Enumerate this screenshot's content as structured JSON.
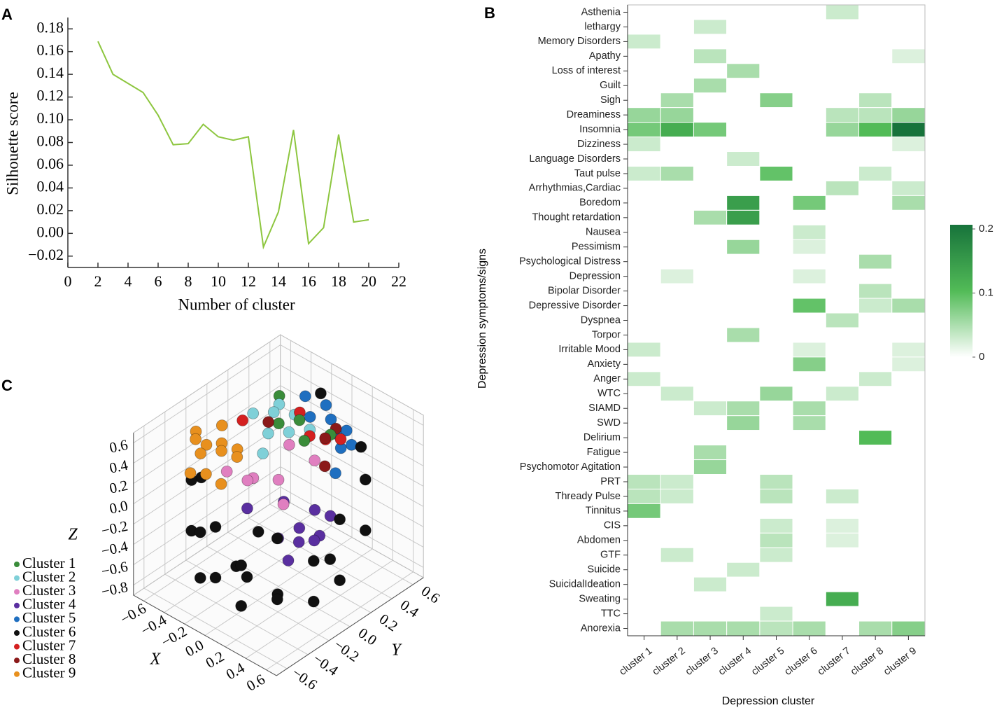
{
  "chart_data": [
    {
      "label": "A",
      "type": "line",
      "x_label": "Number of cluster",
      "y_label": "Silhouette score",
      "x": [
        2,
        3,
        4,
        5,
        6,
        7,
        8,
        9,
        10,
        11,
        12,
        13,
        14,
        15,
        16,
        17,
        18,
        19,
        20
      ],
      "values": [
        0.169,
        0.14,
        0.132,
        0.124,
        0.104,
        0.078,
        0.079,
        0.096,
        0.085,
        0.082,
        0.085,
        -0.012,
        0.019,
        0.091,
        -0.009,
        0.005,
        0.087,
        0.01,
        0.012
      ],
      "color": "#8dc63f",
      "xlim": [
        0,
        22
      ],
      "xticks": [
        0,
        2,
        4,
        6,
        8,
        10,
        12,
        14,
        16,
        18,
        20,
        22
      ],
      "ylim": [
        -0.03,
        0.19
      ],
      "yticks": [
        {
          "value": -0.02,
          "label": "−0.02"
        },
        {
          "value": 0,
          "label": "0.00"
        },
        0.02,
        0.04,
        0.06,
        0.08,
        {
          "value": 0.1,
          "label": "0.10"
        },
        0.12,
        0.14,
        0.16,
        0.18
      ]
    },
    {
      "label": "B",
      "type": "heatmap",
      "x_label": "Depression cluster",
      "y_label": "Depression symptoms/signs",
      "categories": [
        "cluster 1",
        "cluster 2",
        "cluster 3",
        "cluster 4",
        "cluster 5",
        "cluster 6",
        "cluster 7",
        "cluster 8",
        "cluster 9"
      ],
      "rows": [
        "Asthenia",
        "lethargy",
        "Memory Disorders",
        "Apathy",
        "Loss of interest",
        "Guilt",
        "Sigh",
        "Dreaminess",
        "Insomnia",
        "Dizziness",
        "Language Disorders",
        "Taut pulse",
        "Arrhythmias,Cardiac",
        "Boredom",
        "Thought retardation",
        "Nausea",
        "Pessimism",
        "Psychological Distress",
        "Depression",
        "Bipolar Disorder",
        "Depressive Disorder",
        "Dyspnea",
        "Torpor",
        "Irritable Mood",
        "Anxiety",
        "Anger",
        "WTC",
        "SIAMD",
        "SWD",
        "Delirium",
        "Fatigue",
        "Psychomotor Agitation",
        "PRT",
        "Thready Pulse",
        "Tinnitus",
        "CIS",
        "Abdomen",
        "GTF",
        "Suicide",
        "SuicidalIdeation",
        "Sweating",
        "TTC",
        "Anorexia"
      ],
      "values": [
        [
          0,
          0,
          0,
          0,
          0,
          0,
          0.03,
          0,
          0
        ],
        [
          0,
          0,
          0.03,
          0,
          0,
          0,
          0,
          0,
          0
        ],
        [
          0.03,
          0,
          0,
          0,
          0,
          0,
          0,
          0,
          0
        ],
        [
          0,
          0,
          0.04,
          0,
          0,
          0,
          0,
          0,
          0.02
        ],
        [
          0,
          0,
          0,
          0.05,
          0,
          0,
          0,
          0,
          0
        ],
        [
          0,
          0,
          0.05,
          0,
          0,
          0,
          0,
          0,
          0
        ],
        [
          0,
          0.05,
          0,
          0,
          0.07,
          0,
          0,
          0.04,
          0
        ],
        [
          0.06,
          0.06,
          0,
          0,
          0,
          0,
          0.04,
          0.04,
          0.06
        ],
        [
          0.08,
          0.12,
          0.08,
          0,
          0,
          0,
          0.06,
          0.1,
          0.2
        ],
        [
          0.03,
          0,
          0,
          0,
          0,
          0,
          0,
          0,
          0.02
        ],
        [
          0,
          0,
          0,
          0.03,
          0,
          0,
          0,
          0,
          0
        ],
        [
          0.03,
          0.05,
          0,
          0,
          0.09,
          0,
          0,
          0.03,
          0
        ],
        [
          0,
          0,
          0,
          0,
          0,
          0,
          0.04,
          0,
          0.03
        ],
        [
          0,
          0,
          0,
          0.14,
          0,
          0.08,
          0,
          0,
          0.05
        ],
        [
          0,
          0,
          0.05,
          0.14,
          0,
          0,
          0,
          0,
          0
        ],
        [
          0,
          0,
          0,
          0,
          0,
          0.03,
          0,
          0,
          0
        ],
        [
          0,
          0,
          0,
          0.06,
          0,
          0.02,
          0,
          0,
          0
        ],
        [
          0,
          0,
          0,
          0,
          0,
          0,
          0,
          0.05,
          0
        ],
        [
          0,
          0.02,
          0,
          0,
          0,
          0.02,
          0,
          0,
          0
        ],
        [
          0,
          0,
          0,
          0,
          0,
          0,
          0,
          0.04,
          0
        ],
        [
          0,
          0,
          0,
          0,
          0,
          0.09,
          0,
          0.03,
          0.05
        ],
        [
          0,
          0,
          0,
          0,
          0,
          0,
          0.04,
          0,
          0
        ],
        [
          0,
          0,
          0,
          0.05,
          0,
          0,
          0,
          0,
          0
        ],
        [
          0.03,
          0,
          0,
          0,
          0,
          0.02,
          0,
          0,
          0.02
        ],
        [
          0,
          0,
          0,
          0,
          0,
          0.07,
          0,
          0,
          0.02
        ],
        [
          0.03,
          0,
          0,
          0,
          0,
          0,
          0,
          0.03,
          0
        ],
        [
          0,
          0.03,
          0,
          0,
          0.06,
          0,
          0.03,
          0,
          0
        ],
        [
          0,
          0,
          0.03,
          0.05,
          0,
          0.05,
          0,
          0,
          0
        ],
        [
          0,
          0,
          0,
          0.06,
          0,
          0.05,
          0,
          0,
          0
        ],
        [
          0,
          0,
          0,
          0,
          0,
          0,
          0,
          0.1,
          0
        ],
        [
          0,
          0,
          0.05,
          0,
          0,
          0,
          0,
          0,
          0
        ],
        [
          0,
          0,
          0.06,
          0,
          0,
          0,
          0,
          0,
          0
        ],
        [
          0.04,
          0.03,
          0,
          0,
          0.04,
          0,
          0,
          0,
          0
        ],
        [
          0.04,
          0.03,
          0,
          0,
          0.04,
          0,
          0.03,
          0,
          0
        ],
        [
          0.08,
          0,
          0,
          0,
          0,
          0,
          0,
          0,
          0
        ],
        [
          0,
          0,
          0,
          0,
          0.03,
          0,
          0.02,
          0,
          0
        ],
        [
          0,
          0,
          0,
          0,
          0.04,
          0,
          0.02,
          0,
          0
        ],
        [
          0,
          0.03,
          0,
          0,
          0.03,
          0,
          0,
          0,
          0
        ],
        [
          0,
          0,
          0,
          0.03,
          0,
          0,
          0,
          0,
          0
        ],
        [
          0,
          0,
          0.03,
          0,
          0,
          0,
          0,
          0,
          0
        ],
        [
          0,
          0,
          0,
          0,
          0,
          0,
          0.12,
          0,
          0
        ],
        [
          0,
          0,
          0,
          0,
          0.03,
          0,
          0,
          0,
          0
        ],
        [
          0,
          0.05,
          0.05,
          0.05,
          0.04,
          0.05,
          0,
          0.05,
          0.07
        ]
      ],
      "colorscale": [
        "#ffffff",
        "#52bb57",
        "#17733b"
      ],
      "clim": [
        0,
        0.2
      ],
      "cticks": [
        0,
        0.1,
        0.2
      ]
    },
    {
      "label": "C",
      "type": "scatter3d",
      "x_label": "X",
      "y_label": "Y",
      "z_label": "Z",
      "xlim": [
        -0.7,
        0.7
      ],
      "ylim": [
        -0.7,
        0.7
      ],
      "zlim": [
        -0.9,
        0.7
      ],
      "xticks": [
        {
          "value": -0.6,
          "label": "−0.6"
        },
        {
          "value": -0.4,
          "label": "−0.4"
        },
        {
          "value": -0.2,
          "label": "−0.2"
        },
        {
          "value": 0,
          "label": "0.0"
        },
        0.2,
        0.4,
        0.6
      ],
      "yticks": [
        {
          "value": -0.6,
          "label": "−0.6"
        },
        {
          "value": -0.4,
          "label": "−0.4"
        },
        {
          "value": -0.2,
          "label": "−0.2"
        },
        {
          "value": 0,
          "label": "0.0"
        },
        0.2,
        0.4,
        0.6
      ],
      "zticks": [
        {
          "value": -0.8,
          "label": "−0.8"
        },
        {
          "value": -0.6,
          "label": "−0.6"
        },
        {
          "value": -0.4,
          "label": "−0.4"
        },
        {
          "value": -0.2,
          "label": "−0.2"
        },
        {
          "value": 0,
          "label": "0.0"
        },
        0.2,
        0.4,
        0.6
      ],
      "series": [
        {
          "name": "Cluster 1",
          "color": "#3a8c3a",
          "x": [
            -0.3,
            0,
            0.2,
            -0.1,
            0.15
          ],
          "y": [
            0.3,
            0.2,
            0.3,
            0.1,
            0.1
          ],
          "z": [
            0.6,
            0.6,
            0.5,
            0.58,
            0.55
          ]
        },
        {
          "name": "Cluster 2",
          "color": "#7fd0d8",
          "x": [
            -0.3,
            -0.2,
            -0.1,
            0,
            -0.25,
            -0.15,
            0.05,
            -0.05
          ],
          "y": [
            0.05,
            0.15,
            0,
            0.1,
            0.25,
            0.3,
            0.25,
            -0.1
          ],
          "z": [
            0.6,
            0.6,
            0.55,
            0.55,
            0.58,
            0.5,
            0.5,
            0.45
          ]
        },
        {
          "name": "Cluster 3",
          "color": "#e07fc0",
          "x": [
            -0.3,
            -0.2,
            0,
            0.1,
            -0.35,
            -0.1,
            0.2
          ],
          "y": [
            -0.2,
            -0.1,
            0,
            -0.05,
            0.1,
            0.2,
            0.15
          ],
          "z": [
            0.2,
            0.1,
            0.15,
            0,
            -0.1,
            0.3,
            0.35
          ]
        },
        {
          "name": "Cluster 4",
          "color": "#5a2fa0",
          "x": [
            0.1,
            0.2,
            0.3,
            0.15,
            0.25,
            0,
            0.35,
            -0.1,
            0.2,
            0.05
          ],
          "y": [
            -0.1,
            0,
            0.1,
            0.2,
            -0.15,
            0.05,
            0,
            -0.2,
            0.3,
            0.15
          ],
          "z": [
            -0.3,
            -0.35,
            -0.3,
            -0.2,
            -0.4,
            -0.1,
            -0.25,
            -0.05,
            -0.3,
            -0.4
          ]
        },
        {
          "name": "Cluster 5",
          "color": "#1f6fc0",
          "x": [
            -0.2,
            -0.1,
            0,
            0.1,
            0.2,
            0.05,
            0.15,
            -0.05,
            0.25
          ],
          "y": [
            0.45,
            0.55,
            0.5,
            0.45,
            0.4,
            0.6,
            0.55,
            0.35,
            0.3
          ],
          "z": [
            0.55,
            0.45,
            0.4,
            0.35,
            0.3,
            0.25,
            0.2,
            0.5,
            0.15
          ]
        },
        {
          "name": "Cluster 6",
          "color": "#111111",
          "x": [
            0.6,
            0.42,
            0,
            -0.42,
            0.42,
            0.55,
            0.2,
            -0.2,
            -0.55,
            0.6,
            0.42,
            0,
            -0.42,
            0.42,
            0.55,
            0.2,
            -0.2,
            0.3,
            0,
            -0.3,
            0.3,
            0.1,
            -0.1,
            0.5
          ],
          "y": [
            0,
            -0.42,
            -0.6,
            -0.42,
            0.42,
            -0.2,
            -0.55,
            -0.55,
            -0.2,
            0,
            -0.42,
            -0.6,
            -0.42,
            0.42,
            -0.2,
            -0.55,
            -0.55,
            -0.3,
            -0.3,
            0.1,
            0.2,
            -0.5,
            0.5,
            0.3
          ],
          "z": [
            0.1,
            0.1,
            0.1,
            0.2,
            0.1,
            -0.2,
            -0.2,
            -0.1,
            0,
            -0.5,
            -0.5,
            -0.4,
            -0.3,
            -0.4,
            -0.6,
            -0.6,
            -0.55,
            -0.6,
            -0.6,
            -0.6,
            -0.6,
            -0.3,
            0.6,
            0.55
          ]
        },
        {
          "name": "Cluster 7",
          "color": "#d42020",
          "x": [
            -0.1,
            0.1,
            0.25,
            -0.3,
            0.05
          ],
          "y": [
            0.3,
            0.2,
            0.35,
            -0.05,
            0.4
          ],
          "z": [
            0.55,
            0.5,
            0.45,
            0.6,
            0.3
          ]
        },
        {
          "name": "Cluster 8",
          "color": "#8b1a1a",
          "x": [
            0.2,
            -0.15,
            0.1,
            0.3
          ],
          "y": [
            0.25,
            0.05,
            0.45,
            0.15
          ],
          "z": [
            0.5,
            0.6,
            0.4,
            0.35
          ]
        },
        {
          "name": "Cluster 9",
          "color": "#e8901e",
          "x": [
            -0.5,
            -0.4,
            -0.3,
            -0.45,
            -0.35,
            -0.25,
            -0.4,
            -0.3,
            -0.2,
            -0.35,
            -0.5,
            -0.15
          ],
          "y": [
            -0.3,
            -0.4,
            -0.45,
            -0.1,
            -0.2,
            -0.3,
            -0.45,
            -0.1,
            -0.2,
            -0.35,
            -0.2,
            -0.4
          ],
          "z": [
            0.55,
            0.6,
            0.55,
            0.5,
            0.45,
            0.5,
            0.3,
            0.35,
            0.4,
            0.25,
            0.35,
            0.3
          ]
        }
      ]
    }
  ]
}
